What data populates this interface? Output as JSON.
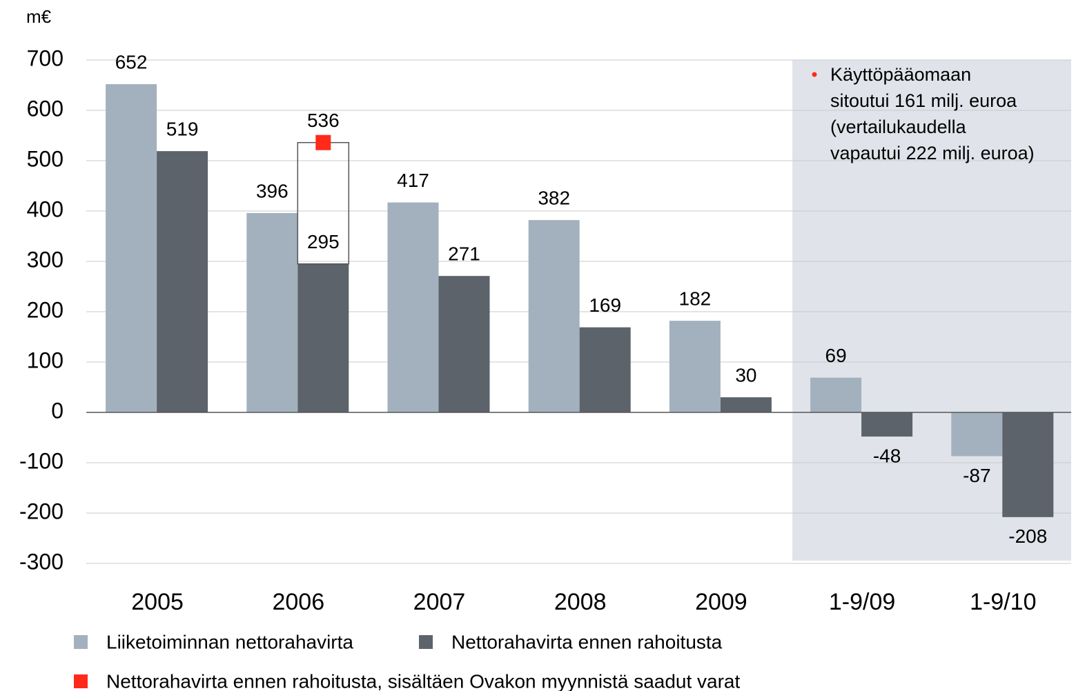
{
  "chart_data": {
    "type": "bar",
    "y_unit": "m€",
    "categories": [
      "2005",
      "2006",
      "2007",
      "2008",
      "2009",
      "1-9/09",
      "1-9/10"
    ],
    "series": [
      {
        "name": "Liiketoiminnan nettorahavirta",
        "color": "#a2b1bd",
        "values": [
          652,
          396,
          417,
          382,
          182,
          69,
          -87
        ]
      },
      {
        "name": "Nettorahavirta ennen rahoitusta",
        "color": "#5c636a",
        "values": [
          519,
          295,
          271,
          169,
          30,
          -48,
          -208
        ]
      },
      {
        "name": "Nettorahavirta ennen rahoitusta, sisältäen Ovakon myynnistä saadut varat",
        "color": "#ff2a1a",
        "values": [
          null,
          536,
          null,
          null,
          null,
          null,
          null
        ]
      }
    ],
    "annotation": [
      "Käyttöpääomaan",
      "sitoutui 161 milj. euroa",
      "(vertailukaudella",
      "vapautui 222 milj. euroa)"
    ],
    "ylim": [
      -300,
      700
    ],
    "yticks": [
      -300,
      -200,
      -100,
      0,
      100,
      200,
      300,
      400,
      500,
      600,
      700
    ],
    "grid": true
  }
}
